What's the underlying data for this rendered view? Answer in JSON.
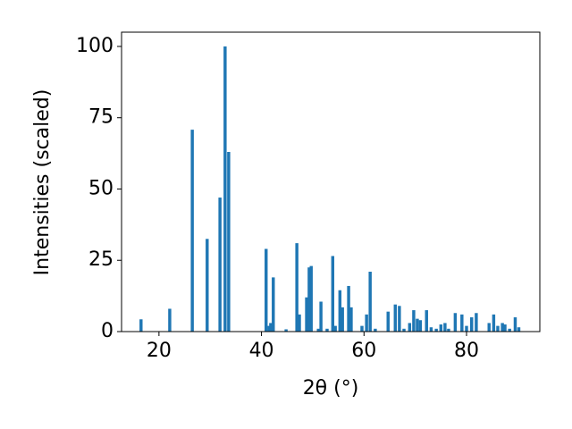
{
  "chart_data": {
    "type": "bar",
    "x_label": "2θ (°)",
    "y_label": "Intensities (scaled)",
    "color": "#1f77b4",
    "x": [
      16.5,
      22.1,
      26.5,
      29.4,
      31.9,
      32.9,
      33.6,
      40.9,
      41.5,
      41.8,
      42.3,
      44.8,
      46.9,
      47.4,
      48.8,
      49.3,
      49.7,
      51.1,
      51.6,
      52.8,
      53.9,
      54.4,
      55.3,
      55.8,
      57.0,
      57.5,
      59.6,
      60.5,
      61.2,
      62.2,
      64.7,
      66.1,
      66.9,
      67.8,
      68.9,
      69.7,
      70.4,
      71.0,
      72.2,
      73.1,
      74.1,
      75.0,
      75.8,
      76.5,
      77.8,
      79.1,
      80.0,
      81.0,
      81.9,
      84.4,
      85.3,
      86.1,
      87.0,
      87.5,
      88.4,
      89.5,
      90.2
    ],
    "values": [
      4.3,
      8,
      70.8,
      32.5,
      47,
      100,
      63,
      29,
      2,
      3,
      19,
      0.8,
      31,
      6,
      12,
      22.5,
      23,
      1,
      10.5,
      1,
      26.5,
      2,
      14.5,
      8.5,
      16,
      8.5,
      2,
      6,
      21,
      1,
      7,
      9.5,
      9,
      1,
      3,
      7.5,
      4.5,
      4,
      7.5,
      1.5,
      1,
      2.5,
      3,
      1,
      6.5,
      6,
      2,
      5,
      6.5,
      3,
      6,
      2,
      3,
      2.5,
      1,
      5,
      1.5
    ],
    "xlim": [
      12.7,
      94.3
    ],
    "ylim": [
      0,
      105
    ],
    "xticks": [
      20,
      40,
      60,
      80
    ],
    "yticks": [
      0,
      25,
      50,
      75,
      100
    ]
  }
}
